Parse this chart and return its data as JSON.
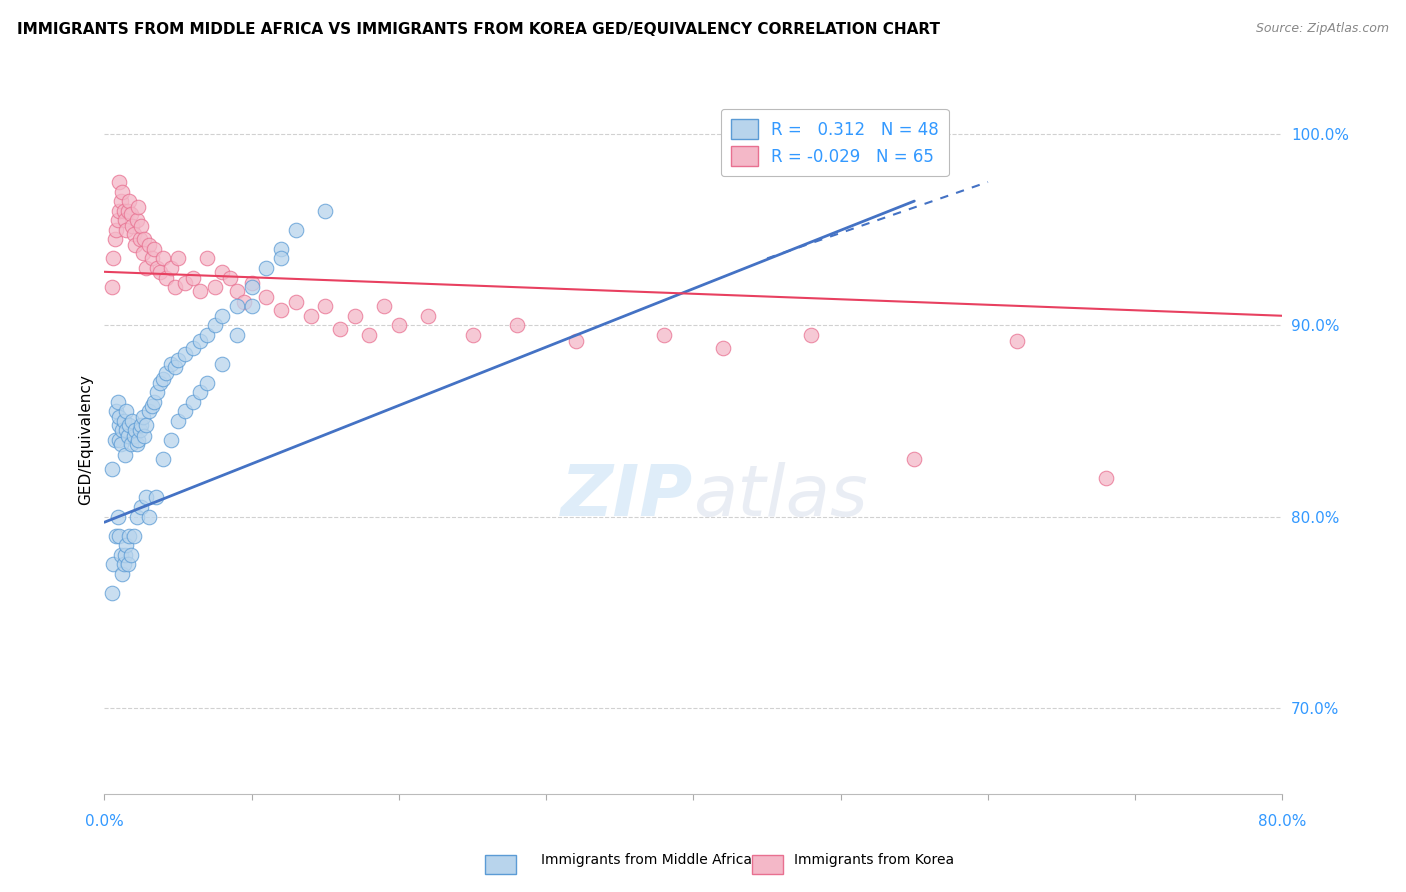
{
  "title": "IMMIGRANTS FROM MIDDLE AFRICA VS IMMIGRANTS FROM KOREA GED/EQUIVALENCY CORRELATION CHART",
  "source": "Source: ZipAtlas.com",
  "ylabel": "GED/Equivalency",
  "ytick_labels": [
    "70.0%",
    "80.0%",
    "90.0%",
    "100.0%"
  ],
  "ytick_values": [
    0.7,
    0.8,
    0.9,
    1.0
  ],
  "xlim": [
    0.0,
    0.8
  ],
  "ylim": [
    0.655,
    1.025
  ],
  "legend_r1": "R =   0.312   N = 48",
  "legend_r2": "R = -0.029   N = 65",
  "blue_fill": "#b8d4ec",
  "blue_edge": "#5b9bd5",
  "pink_fill": "#f4b8c8",
  "pink_edge": "#e87090",
  "blue_line_color": "#4472c4",
  "pink_line_color": "#e84060",
  "watermark_color": "#d0e8f8",
  "blue_points_x": [
    0.005,
    0.007,
    0.008,
    0.009,
    0.01,
    0.01,
    0.01,
    0.011,
    0.012,
    0.013,
    0.014,
    0.015,
    0.015,
    0.016,
    0.017,
    0.018,
    0.019,
    0.02,
    0.021,
    0.022,
    0.023,
    0.024,
    0.025,
    0.026,
    0.027,
    0.028,
    0.03,
    0.032,
    0.034,
    0.036,
    0.038,
    0.04,
    0.042,
    0.045,
    0.048,
    0.05,
    0.055,
    0.06,
    0.065,
    0.07,
    0.075,
    0.08,
    0.09,
    0.1,
    0.11,
    0.12,
    0.13,
    0.15
  ],
  "blue_points_y": [
    0.825,
    0.84,
    0.855,
    0.86,
    0.84,
    0.848,
    0.852,
    0.838,
    0.845,
    0.85,
    0.832,
    0.845,
    0.855,
    0.842,
    0.848,
    0.838,
    0.85,
    0.842,
    0.845,
    0.838,
    0.84,
    0.845,
    0.848,
    0.852,
    0.842,
    0.848,
    0.855,
    0.858,
    0.86,
    0.865,
    0.87,
    0.872,
    0.875,
    0.88,
    0.878,
    0.882,
    0.885,
    0.888,
    0.892,
    0.895,
    0.9,
    0.905,
    0.91,
    0.92,
    0.93,
    0.94,
    0.95,
    0.96
  ],
  "blue_extra_x": [
    0.005,
    0.006,
    0.008,
    0.009,
    0.01,
    0.011,
    0.012,
    0.013,
    0.014,
    0.015,
    0.016,
    0.017,
    0.018,
    0.02,
    0.022,
    0.025,
    0.028,
    0.03,
    0.035,
    0.04,
    0.045,
    0.05,
    0.055,
    0.06,
    0.065,
    0.07,
    0.08,
    0.09,
    0.1,
    0.12
  ],
  "blue_extra_y": [
    0.76,
    0.775,
    0.79,
    0.8,
    0.79,
    0.78,
    0.77,
    0.775,
    0.78,
    0.785,
    0.775,
    0.79,
    0.78,
    0.79,
    0.8,
    0.805,
    0.81,
    0.8,
    0.81,
    0.83,
    0.84,
    0.85,
    0.855,
    0.86,
    0.865,
    0.87,
    0.88,
    0.895,
    0.91,
    0.935
  ],
  "pink_points_x": [
    0.005,
    0.006,
    0.007,
    0.008,
    0.009,
    0.01,
    0.01,
    0.011,
    0.012,
    0.013,
    0.014,
    0.015,
    0.016,
    0.017,
    0.018,
    0.019,
    0.02,
    0.021,
    0.022,
    0.023,
    0.024,
    0.025,
    0.026,
    0.027,
    0.028,
    0.03,
    0.032,
    0.034,
    0.036,
    0.038,
    0.04,
    0.042,
    0.045,
    0.048,
    0.05,
    0.055,
    0.06,
    0.065,
    0.07,
    0.075,
    0.08,
    0.085,
    0.09,
    0.095,
    0.1,
    0.11,
    0.12,
    0.13,
    0.14,
    0.15,
    0.16,
    0.17,
    0.18,
    0.19,
    0.2,
    0.22,
    0.25,
    0.28,
    0.32,
    0.38,
    0.42,
    0.48,
    0.55,
    0.62,
    0.68
  ],
  "pink_points_y": [
    0.92,
    0.935,
    0.945,
    0.95,
    0.955,
    0.96,
    0.975,
    0.965,
    0.97,
    0.96,
    0.955,
    0.95,
    0.96,
    0.965,
    0.958,
    0.952,
    0.948,
    0.942,
    0.955,
    0.962,
    0.945,
    0.952,
    0.938,
    0.945,
    0.93,
    0.942,
    0.935,
    0.94,
    0.93,
    0.928,
    0.935,
    0.925,
    0.93,
    0.92,
    0.935,
    0.922,
    0.925,
    0.918,
    0.935,
    0.92,
    0.928,
    0.925,
    0.918,
    0.912,
    0.922,
    0.915,
    0.908,
    0.912,
    0.905,
    0.91,
    0.898,
    0.905,
    0.895,
    0.91,
    0.9,
    0.905,
    0.895,
    0.9,
    0.892,
    0.895,
    0.888,
    0.895,
    0.83,
    0.892,
    0.82
  ],
  "blue_trend_x": [
    0.0,
    0.55
  ],
  "blue_trend_y": [
    0.797,
    0.965
  ],
  "pink_trend_x": [
    0.0,
    0.8
  ],
  "pink_trend_y": [
    0.928,
    0.905
  ]
}
